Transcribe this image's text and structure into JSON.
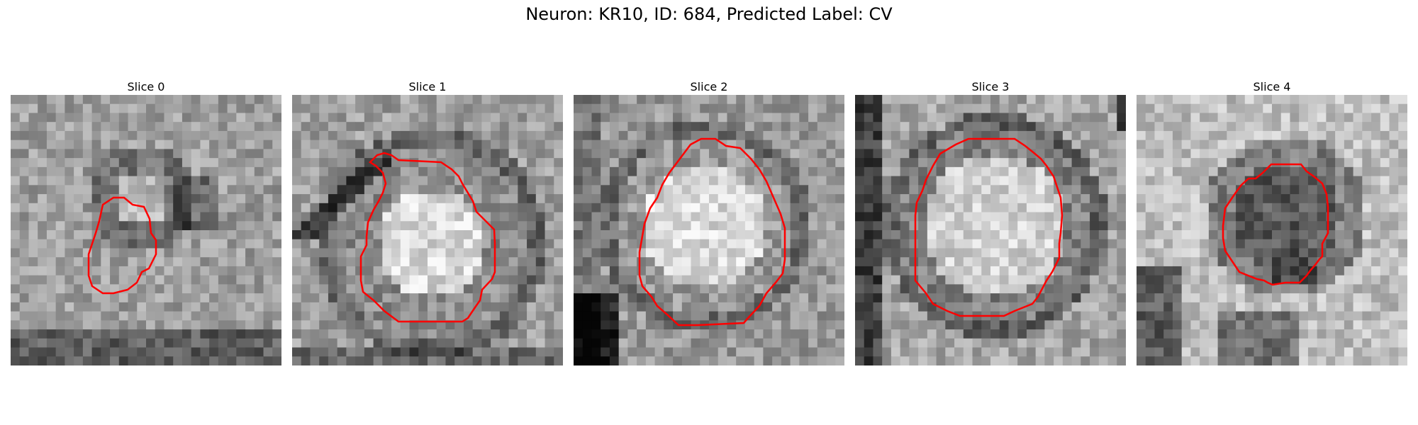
{
  "title": "Neuron: KR10, ID: 684, Predicted Label: CV",
  "overlay_color": "#ff0000",
  "image_colormap": "grayscale",
  "slices": [
    {
      "label": "Slice 0",
      "texture": "noisy gray field with a small bright core ringed by a dark halo, dark band along bottom edge"
    },
    {
      "label": "Slice 1",
      "texture": "bright soma center with dark curved membrane boundaries and a dark diagonal streak at upper left"
    },
    {
      "label": "Slice 2",
      "texture": "large bright blob with darker surround, very dark region at lower left"
    },
    {
      "label": "Slice 3",
      "texture": "large bright round region outlined by dark ring, dark vertical band at left"
    },
    {
      "label": "Slice 4",
      "texture": "bright background with a dark irregular blob in the center-right, dark streak bottom left"
    }
  ]
}
